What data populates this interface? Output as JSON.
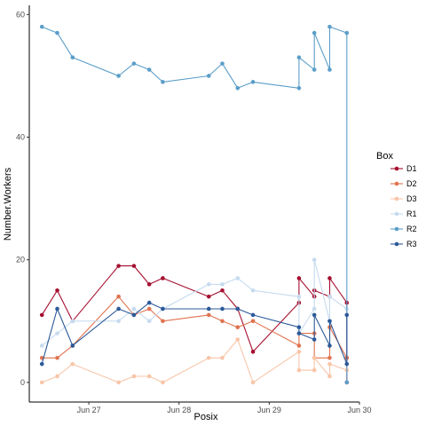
{
  "chart_data": {
    "type": "line",
    "xlabel": "Posix",
    "ylabel": "Number.Workers",
    "x_ticks": [
      {
        "value": 27.0,
        "label": "Jun 27"
      },
      {
        "value": 28.0,
        "label": "Jun 28"
      },
      {
        "value": 29.0,
        "label": "Jun 29"
      },
      {
        "value": 30.0,
        "label": "Jun 30"
      }
    ],
    "y_ticks": [
      0,
      20,
      40,
      60
    ],
    "xlim_day": [
      26.34,
      30.0
    ],
    "ylim": [
      -3.2,
      61.5
    ],
    "x_unit_note": "x values are day-of-June (fractional), e.g. 27.5 = Jun 27 12:00",
    "grid": false,
    "legend": {
      "title": "Box",
      "position": "right"
    },
    "series": [
      {
        "name": "D1",
        "color": "#a50f30",
        "x": [
          26.48,
          26.65,
          26.82,
          27.33,
          27.5,
          27.67,
          27.82,
          28.33,
          28.48,
          28.65,
          28.82,
          29.33,
          29.33,
          29.5,
          29.5,
          29.67,
          29.67,
          29.86,
          29.86
        ],
        "y": [
          11,
          15,
          10,
          19,
          19,
          16,
          17,
          14,
          15,
          12,
          5,
          13,
          17,
          14,
          15,
          14,
          17,
          13,
          0
        ]
      },
      {
        "name": "D2",
        "color": "#e0734f",
        "x": [
          26.48,
          26.65,
          26.82,
          27.33,
          27.5,
          27.67,
          27.82,
          28.33,
          28.48,
          28.65,
          28.82,
          29.33,
          29.33,
          29.5,
          29.5,
          29.67,
          29.67,
          29.86,
          29.86
        ],
        "y": [
          4,
          4,
          6,
          14,
          11,
          12,
          10,
          11,
          10,
          9,
          10,
          6,
          8,
          8,
          4,
          4,
          9,
          4,
          4
        ]
      },
      {
        "name": "D3",
        "color": "#f8c5a8",
        "x": [
          26.48,
          26.65,
          26.82,
          27.33,
          27.5,
          27.67,
          27.82,
          28.33,
          28.48,
          28.65,
          28.82,
          29.33,
          29.33,
          29.5,
          29.5,
          29.67,
          29.67,
          29.86,
          29.86
        ],
        "y": [
          0,
          1,
          3,
          0,
          1,
          1,
          0,
          4,
          4,
          7,
          0,
          5,
          2,
          2,
          4,
          1,
          3,
          2,
          3
        ]
      },
      {
        "name": "R1",
        "color": "#c6dbef",
        "x": [
          26.48,
          26.65,
          26.82,
          27.33,
          27.5,
          27.67,
          27.82,
          28.33,
          28.48,
          28.65,
          28.82,
          29.33,
          29.33,
          29.5,
          29.5,
          29.67,
          29.67,
          29.86,
          29.86
        ],
        "y": [
          6,
          8,
          10,
          10,
          12,
          10,
          12,
          16,
          16,
          17,
          15,
          14,
          8,
          12,
          20,
          10,
          14,
          12,
          11
        ]
      },
      {
        "name": "R2",
        "color": "#5b9ec9",
        "x": [
          26.48,
          26.65,
          26.82,
          27.33,
          27.5,
          27.67,
          27.82,
          28.33,
          28.48,
          28.65,
          28.82,
          29.33,
          29.33,
          29.5,
          29.5,
          29.67,
          29.67,
          29.86,
          29.86
        ],
        "y": [
          58,
          57,
          53,
          50,
          52,
          51,
          49,
          50,
          52,
          48,
          49,
          48,
          53,
          51,
          57,
          51,
          58,
          57,
          0
        ]
      },
      {
        "name": "R3",
        "color": "#2c5a9a",
        "x": [
          26.48,
          26.65,
          26.82,
          27.33,
          27.5,
          27.67,
          27.82,
          28.33,
          28.48,
          28.65,
          28.82,
          29.33,
          29.33,
          29.5,
          29.5,
          29.67,
          29.67,
          29.86,
          29.86
        ],
        "y": [
          3,
          12,
          6,
          12,
          11,
          13,
          12,
          12,
          12,
          12,
          11,
          9,
          8,
          7,
          11,
          6,
          10,
          3,
          11
        ]
      }
    ]
  }
}
